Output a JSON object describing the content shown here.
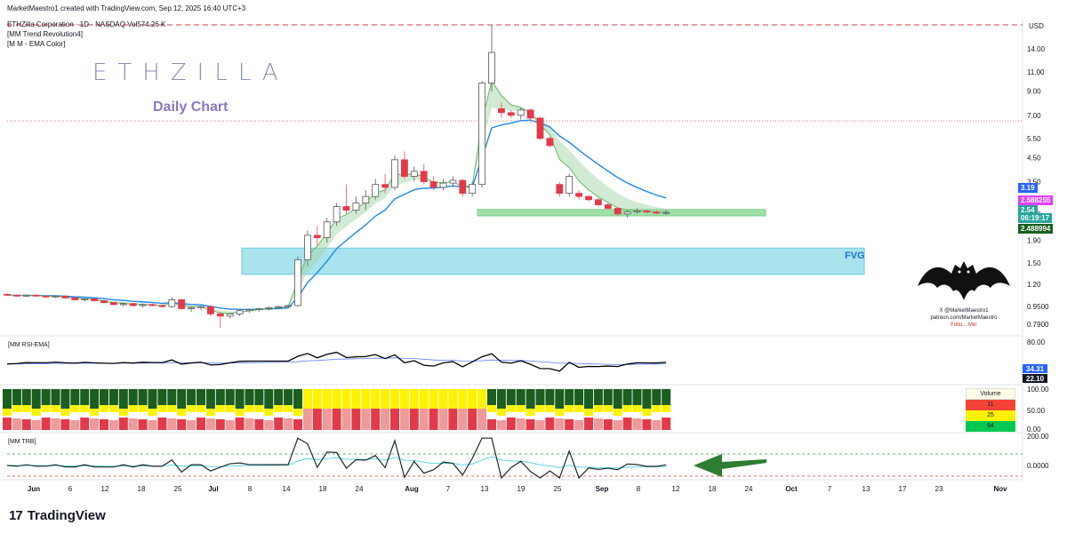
{
  "header": {
    "creator": "MarketMaestro1 created with TradingView.com, Sep 12, 2025 16:40 UTC+3",
    "symbol": "ETHZilla Corporation · 1D · NASDAQ  Vol574.26 K",
    "ind1": "[MM Trend Revolution4]",
    "ind2": "[M M - EMA Color]"
  },
  "brand": "ETHZILLA",
  "subtitle": "Daily Chart",
  "fvg_label": "FVG",
  "footer": {
    "logo": "TradingView"
  },
  "credit": {
    "line1": "X @MarketMaestro1",
    "line2": "patreon.com/MarketMaestro",
    "line3": "Follo... Me!"
  },
  "colors": {
    "up": "#ffffff",
    "down": "#e23a4a",
    "band": "#9fe1a8",
    "fvg": "#a8e3ee",
    "ema": "#1e88e5",
    "green": "#1b5e20",
    "yellow": "#fff200",
    "red": "#f44336"
  },
  "price_labels": [
    {
      "text": "3.19",
      "color": "#2962ff"
    },
    {
      "text": "2.588255",
      "color": "#e040fb"
    },
    {
      "text": "2.54",
      "color": "#26a69a"
    },
    {
      "text": "06:19:17",
      "color": "#26a69a"
    },
    {
      "text": "2.488994",
      "color": "#1b5e20"
    }
  ],
  "volume_box": {
    "title": "Volume",
    "values": [
      "11",
      "25",
      "64"
    ],
    "colors": [
      "#f44336",
      "#fff200",
      "#00c853"
    ]
  },
  "chart_data": {
    "type": "candlestick",
    "currency": "USD",
    "y_ticks": [
      "14.00",
      "11.00",
      "9.00",
      "7.00",
      "5.50",
      "4.50",
      "3.50",
      "2.50",
      "1.90",
      "1.50",
      "1.20",
      "0.9500",
      "0.7900"
    ],
    "x_ticks": [
      "Jun",
      "6",
      "12",
      "18",
      "25",
      "Jul",
      "8",
      "14",
      "18",
      "24",
      "Aug",
      "7",
      "13",
      "19",
      "25",
      "Sep",
      "8",
      "12",
      "18",
      "24",
      "Oct",
      "7",
      "13",
      "17",
      "23",
      "Nov"
    ],
    "candles": [
      [
        1.08,
        1.09,
        1.06,
        1.07
      ],
      [
        1.07,
        1.08,
        1.05,
        1.06
      ],
      [
        1.06,
        1.08,
        1.05,
        1.07
      ],
      [
        1.07,
        1.08,
        1.05,
        1.06
      ],
      [
        1.06,
        1.07,
        1.04,
        1.05
      ],
      [
        1.05,
        1.07,
        1.04,
        1.06
      ],
      [
        1.06,
        1.07,
        1.03,
        1.04
      ],
      [
        1.04,
        1.05,
        1.01,
        1.02
      ],
      [
        1.02,
        1.04,
        1.0,
        1.03
      ],
      [
        1.03,
        1.04,
        1.0,
        1.01
      ],
      [
        1.01,
        1.02,
        0.98,
        0.99
      ],
      [
        0.99,
        1.0,
        0.96,
        0.97
      ],
      [
        0.97,
        0.99,
        0.95,
        0.98
      ],
      [
        0.98,
        0.99,
        0.95,
        0.96
      ],
      [
        0.96,
        0.98,
        0.94,
        0.97
      ],
      [
        0.97,
        0.98,
        0.95,
        0.96
      ],
      [
        0.96,
        0.98,
        0.94,
        0.95
      ],
      [
        0.95,
        1.05,
        0.94,
        1.02
      ],
      [
        1.02,
        1.03,
        0.92,
        0.93
      ],
      [
        0.93,
        0.95,
        0.9,
        0.94
      ],
      [
        0.94,
        0.96,
        0.92,
        0.95
      ],
      [
        0.95,
        0.96,
        0.86,
        0.88
      ],
      [
        0.88,
        0.9,
        0.76,
        0.86
      ],
      [
        0.86,
        0.89,
        0.84,
        0.88
      ],
      [
        0.88,
        0.92,
        0.86,
        0.91
      ],
      [
        0.91,
        0.93,
        0.89,
        0.92
      ],
      [
        0.92,
        0.94,
        0.9,
        0.93
      ],
      [
        0.93,
        0.95,
        0.91,
        0.94
      ],
      [
        0.94,
        0.96,
        0.92,
        0.95
      ],
      [
        0.95,
        0.97,
        0.93,
        0.96
      ],
      [
        0.96,
        1.6,
        0.95,
        1.55
      ],
      [
        1.55,
        2.1,
        1.45,
        2.0
      ],
      [
        2.0,
        2.2,
        1.8,
        1.95
      ],
      [
        1.95,
        2.4,
        1.85,
        2.3
      ],
      [
        2.3,
        2.8,
        2.2,
        2.7
      ],
      [
        2.7,
        3.4,
        2.5,
        2.6
      ],
      [
        2.6,
        3.0,
        2.5,
        2.8
      ],
      [
        2.8,
        3.2,
        2.6,
        3.0
      ],
      [
        3.0,
        3.6,
        2.9,
        3.4
      ],
      [
        3.4,
        3.8,
        3.1,
        3.3
      ],
      [
        3.3,
        4.6,
        3.2,
        4.4
      ],
      [
        4.4,
        4.8,
        3.6,
        3.7
      ],
      [
        3.7,
        4.1,
        3.5,
        3.9
      ],
      [
        3.9,
        4.2,
        3.4,
        3.5
      ],
      [
        3.5,
        3.7,
        3.2,
        3.3
      ],
      [
        3.3,
        3.6,
        3.2,
        3.45
      ],
      [
        3.45,
        3.7,
        3.3,
        3.55
      ],
      [
        3.55,
        3.6,
        3.0,
        3.1
      ],
      [
        3.1,
        3.5,
        3.0,
        3.4
      ],
      [
        3.4,
        10.0,
        3.3,
        9.8
      ],
      [
        9.8,
        18.0,
        9.0,
        13.5
      ],
      [
        7.5,
        8.0,
        6.8,
        7.2
      ],
      [
        7.2,
        7.4,
        6.8,
        7.0
      ],
      [
        7.0,
        7.6,
        6.7,
        7.4
      ],
      [
        7.4,
        7.5,
        6.5,
        6.8
      ],
      [
        6.8,
        6.9,
        5.4,
        5.5
      ],
      [
        5.5,
        5.6,
        5.0,
        5.1
      ],
      [
        3.4,
        3.5,
        3.0,
        3.1
      ],
      [
        3.1,
        3.8,
        3.0,
        3.7
      ],
      [
        3.1,
        3.2,
        2.9,
        3.0
      ],
      [
        3.0,
        3.05,
        2.85,
        2.9
      ],
      [
        2.9,
        2.95,
        2.7,
        2.75
      ],
      [
        2.75,
        2.8,
        2.6,
        2.65
      ],
      [
        2.65,
        2.7,
        2.45,
        2.5
      ],
      [
        2.5,
        2.6,
        2.4,
        2.55
      ],
      [
        2.55,
        2.65,
        2.5,
        2.58
      ],
      [
        2.58,
        2.62,
        2.5,
        2.55
      ],
      [
        2.55,
        2.6,
        2.48,
        2.52
      ],
      [
        2.52,
        2.6,
        2.48,
        2.54
      ]
    ],
    "levels": {
      "dashed_top": 18.0,
      "dotted": 6.6,
      "support_zone": [
        2.45,
        2.62
      ],
      "fvg_zone": [
        1.33,
        1.75
      ]
    },
    "rsi": {
      "label": "[MM RSI-EMA]",
      "ticks": [
        "80.00"
      ],
      "values": [
        "34.31",
        "22.10"
      ]
    },
    "volume_panel": {
      "label": "Volume",
      "ticks": [
        "100.00",
        "50.00",
        "0.00"
      ]
    },
    "trb": {
      "label": "[MM TRB]",
      "ticks": [
        "200.00",
        "0.0000"
      ]
    }
  }
}
